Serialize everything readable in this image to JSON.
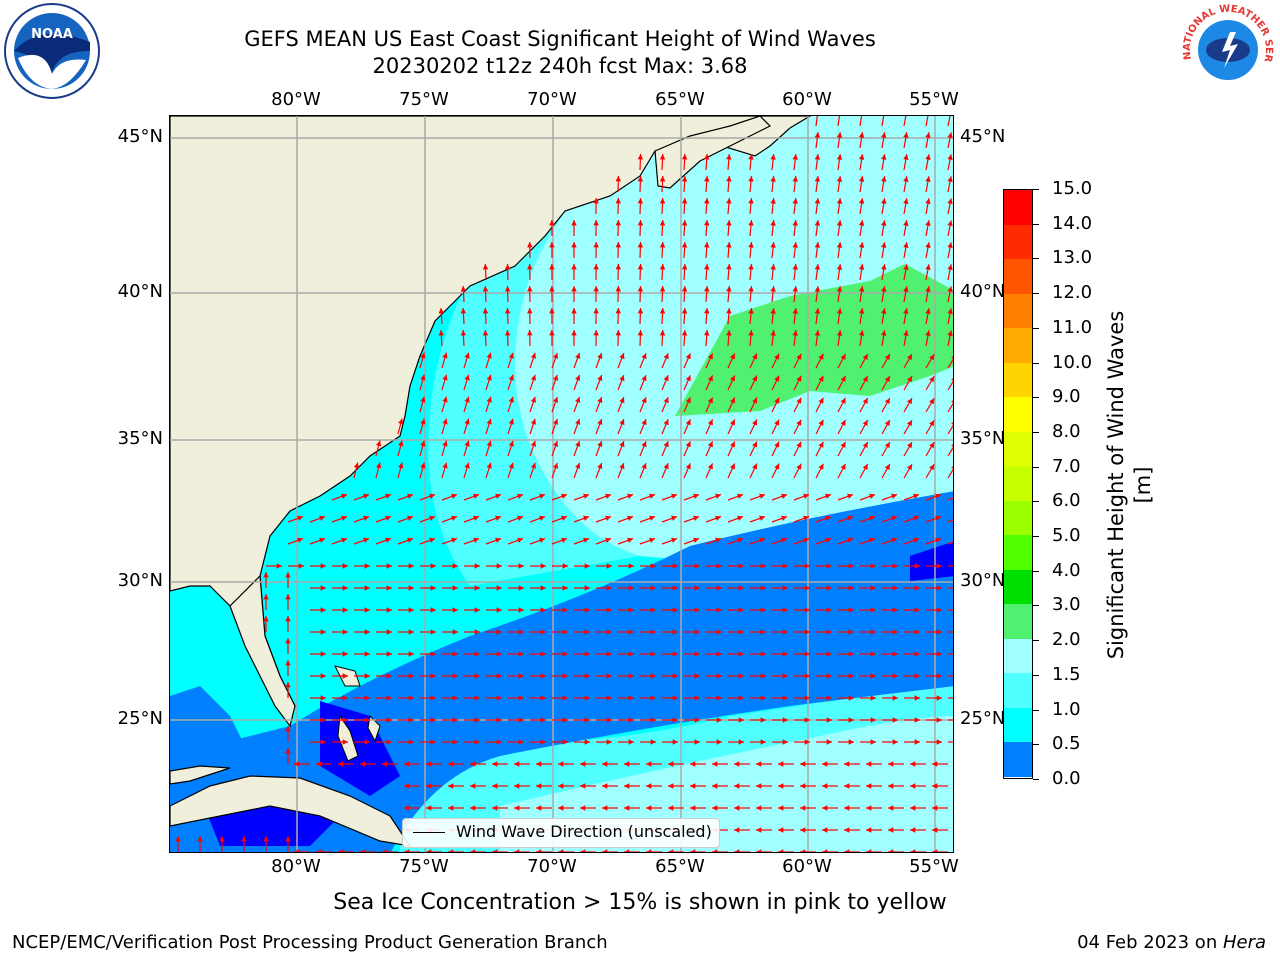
{
  "title_line1": "GEFS MEAN US East Coast Significant Height of Wind Waves",
  "title_line2": "20230202 t12z 240h fcst   Max: 3.68",
  "caption": "Sea Ice Concentration > 15% is shown in pink to yellow",
  "footer_left": "NCEP/EMC/Verification Post Processing Product Generation Branch",
  "footer_right_prefix": "04 Feb 2023 on ",
  "footer_right_machine": "Hera",
  "lon_labels": [
    "80°W",
    "75°W",
    "70°W",
    "65°W",
    "60°W",
    "55°W"
  ],
  "lat_labels": [
    "45°N",
    "40°N",
    "35°N",
    "30°N",
    "25°N"
  ],
  "legend_label": "Wind Wave Direction (unscaled)",
  "colorbar": {
    "title": "Significant Height of Wind Waves [m]",
    "ticks": [
      "15.0",
      "14.0",
      "13.0",
      "12.0",
      "11.0",
      "10.0",
      "9.0",
      "8.0",
      "7.0",
      "6.0",
      "5.0",
      "4.0",
      "3.0",
      "2.0",
      "1.5",
      "1.0",
      "0.5",
      "0.0"
    ],
    "colors": [
      "#ff0000",
      "#ff2a00",
      "#ff5500",
      "#ff8000",
      "#ffaa00",
      "#ffd400",
      "#ffff00",
      "#e0ff00",
      "#c8ff00",
      "#9cff00",
      "#50ff00",
      "#00e000",
      "#50f070",
      "#a0ffff",
      "#50ffff",
      "#00ffff",
      "#0080ff",
      "#0000ff"
    ],
    "color_legend": "bands top to bottom: 14-15 … 0-0.5"
  },
  "colors": {
    "land": "#efefdc",
    "wave_low": "#0000ff",
    "wave_05": "#0080ff",
    "wave_10": "#00ffff",
    "wave_15": "#50ffff",
    "wave_20": "#a0ffff",
    "wave_30": "#50f070",
    "arrow": "#ff0000",
    "grid": "#aaaaaa"
  },
  "logos": {
    "noaa_text": "NOAA",
    "nws_text": "NATIONAL WEATHER SERVICE"
  }
}
